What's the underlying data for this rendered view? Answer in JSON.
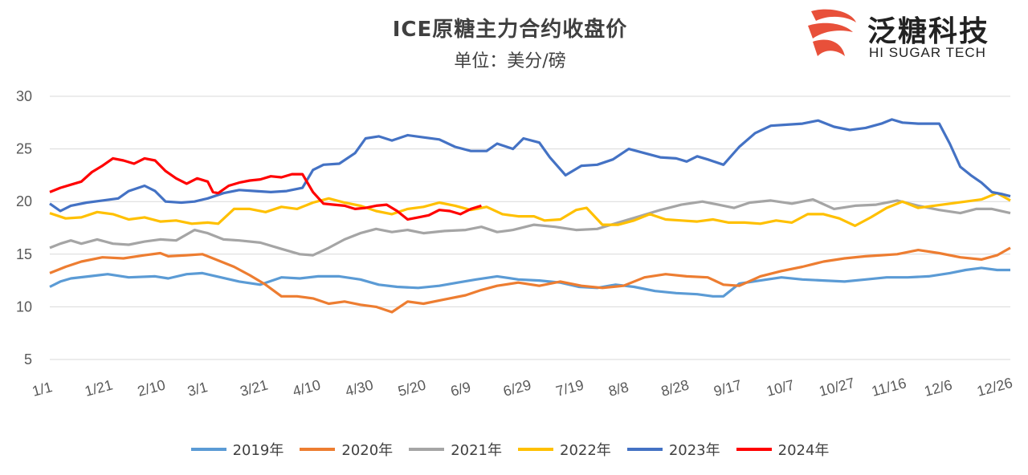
{
  "header": {
    "title": "ICE原糖主力合约收盘价",
    "subtitle": "单位：美分/磅"
  },
  "logo": {
    "name_cn": "泛糖科技",
    "name_en": "HI SUGAR TECH",
    "mark_icon": "hi-sugar-logo-icon"
  },
  "colors": {
    "2019": "#5B9BD5",
    "2020": "#ED7D31",
    "2021": "#A5A5A5",
    "2022": "#FFC000",
    "2023": "#4472C4",
    "2024": "#FF0000",
    "gridline": "#d9d9d9",
    "logo_red": "#E8503A"
  },
  "chart_data": {
    "type": "line",
    "title": "ICE原糖主力合约收盘价",
    "subtitle": "单位：美分/磅",
    "xlabel": "",
    "ylabel": "",
    "ylim": [
      5,
      30
    ],
    "yticks": [
      5,
      10,
      15,
      20,
      25,
      30
    ],
    "grid": true,
    "legend_position": "bottom",
    "x_domain_days": [
      0,
      365
    ],
    "x_ticks": [
      {
        "label": "1/1",
        "day": 0
      },
      {
        "label": "1/21",
        "day": 20
      },
      {
        "label": "2/10",
        "day": 40
      },
      {
        "label": "3/1",
        "day": 59
      },
      {
        "label": "3/21",
        "day": 79
      },
      {
        "label": "4/10",
        "day": 99
      },
      {
        "label": "4/30",
        "day": 119
      },
      {
        "label": "5/20",
        "day": 139
      },
      {
        "label": "6/9",
        "day": 159
      },
      {
        "label": "6/29",
        "day": 179
      },
      {
        "label": "7/19",
        "day": 199
      },
      {
        "label": "8/8",
        "day": 219
      },
      {
        "label": "8/28",
        "day": 239
      },
      {
        "label": "9/17",
        "day": 259
      },
      {
        "label": "10/7",
        "day": 279
      },
      {
        "label": "10/27",
        "day": 299
      },
      {
        "label": "11/16",
        "day": 319
      },
      {
        "label": "12/6",
        "day": 339
      },
      {
        "label": "12/26",
        "day": 359
      }
    ],
    "series": [
      {
        "name": "2019年",
        "x": [
          0,
          4,
          8,
          15,
          22,
          30,
          40,
          45,
          52,
          58,
          65,
          72,
          80,
          88,
          95,
          102,
          110,
          118,
          125,
          132,
          140,
          148,
          155,
          162,
          170,
          178,
          186,
          194,
          201,
          208,
          215,
          222,
          230,
          238,
          246,
          252,
          256,
          262,
          270,
          278,
          286,
          294,
          302,
          310,
          318,
          326,
          334,
          342,
          348,
          354,
          360,
          365
        ],
        "values": [
          11.9,
          12.4,
          12.7,
          12.9,
          13.1,
          12.8,
          12.9,
          12.7,
          13.1,
          13.2,
          12.8,
          12.4,
          12.1,
          12.8,
          12.7,
          12.9,
          12.9,
          12.6,
          12.1,
          11.9,
          11.8,
          12.0,
          12.3,
          12.6,
          12.9,
          12.6,
          12.5,
          12.3,
          11.9,
          11.8,
          12.1,
          11.9,
          11.5,
          11.3,
          11.2,
          11.0,
          11.0,
          12.2,
          12.5,
          12.8,
          12.6,
          12.5,
          12.4,
          12.6,
          12.8,
          12.8,
          12.9,
          13.2,
          13.5,
          13.7,
          13.5,
          13.5
        ]
      },
      {
        "name": "2020年",
        "x": [
          0,
          6,
          12,
          20,
          28,
          36,
          42,
          45,
          52,
          58,
          62,
          70,
          76,
          82,
          88,
          94,
          100,
          106,
          112,
          118,
          124,
          130,
          136,
          142,
          150,
          158,
          164,
          170,
          178,
          186,
          194,
          202,
          210,
          218,
          226,
          234,
          242,
          250,
          256,
          262,
          270,
          278,
          286,
          294,
          302,
          310,
          316,
          322,
          330,
          338,
          346,
          354,
          360,
          365
        ],
        "values": [
          13.2,
          13.8,
          14.3,
          14.7,
          14.6,
          14.9,
          15.1,
          14.8,
          14.9,
          15.0,
          14.6,
          13.8,
          13.0,
          12.1,
          11.0,
          11.0,
          10.8,
          10.3,
          10.5,
          10.2,
          10.0,
          9.5,
          10.5,
          10.3,
          10.7,
          11.1,
          11.6,
          12.0,
          12.3,
          12.0,
          12.4,
          12.0,
          11.8,
          12.0,
          12.8,
          13.1,
          12.9,
          12.8,
          12.1,
          12.0,
          12.9,
          13.4,
          13.8,
          14.3,
          14.6,
          14.8,
          14.9,
          15.0,
          15.4,
          15.1,
          14.7,
          14.5,
          14.9,
          15.6
        ]
      },
      {
        "name": "2021年",
        "x": [
          0,
          4,
          8,
          12,
          18,
          24,
          30,
          36,
          42,
          48,
          55,
          60,
          66,
          72,
          80,
          88,
          95,
          100,
          106,
          112,
          118,
          124,
          130,
          136,
          142,
          150,
          158,
          164,
          170,
          176,
          184,
          192,
          200,
          208,
          216,
          224,
          232,
          240,
          248,
          254,
          260,
          266,
          274,
          282,
          290,
          298,
          306,
          314,
          322,
          330,
          338,
          346,
          352,
          358,
          365
        ],
        "values": [
          15.6,
          16.0,
          16.3,
          16.0,
          16.4,
          16.0,
          15.9,
          16.2,
          16.4,
          16.3,
          17.3,
          17.0,
          16.4,
          16.3,
          16.1,
          15.5,
          15.0,
          14.9,
          15.6,
          16.4,
          17.0,
          17.4,
          17.1,
          17.3,
          17.0,
          17.2,
          17.3,
          17.6,
          17.1,
          17.3,
          17.8,
          17.6,
          17.3,
          17.4,
          18.0,
          18.6,
          19.2,
          19.7,
          20.0,
          19.7,
          19.4,
          19.9,
          20.1,
          19.8,
          20.2,
          19.3,
          19.6,
          19.7,
          20.1,
          19.6,
          19.2,
          18.9,
          19.3,
          19.3,
          18.9
        ]
      },
      {
        "name": "2022年",
        "x": [
          0,
          6,
          12,
          18,
          24,
          30,
          36,
          42,
          48,
          54,
          60,
          64,
          70,
          76,
          82,
          88,
          94,
          100,
          106,
          112,
          118,
          124,
          130,
          136,
          142,
          148,
          154,
          160,
          166,
          172,
          178,
          184,
          188,
          194,
          200,
          204,
          210,
          216,
          222,
          228,
          234,
          240,
          246,
          252,
          258,
          264,
          270,
          276,
          282,
          288,
          294,
          300,
          306,
          312,
          318,
          324,
          330,
          336,
          342,
          348,
          354,
          360,
          365
        ],
        "values": [
          18.9,
          18.4,
          18.5,
          19.0,
          18.8,
          18.3,
          18.5,
          18.1,
          18.2,
          17.9,
          18.0,
          17.9,
          19.3,
          19.3,
          19.0,
          19.5,
          19.3,
          19.9,
          20.3,
          19.9,
          19.6,
          19.1,
          18.8,
          19.3,
          19.5,
          19.9,
          19.6,
          19.2,
          19.5,
          18.8,
          18.6,
          18.6,
          18.2,
          18.3,
          19.2,
          19.4,
          17.8,
          17.8,
          18.2,
          18.8,
          18.3,
          18.2,
          18.1,
          18.3,
          18.0,
          18.0,
          17.9,
          18.2,
          18.0,
          18.8,
          18.8,
          18.4,
          17.7,
          18.5,
          19.4,
          20.0,
          19.4,
          19.6,
          19.8,
          20.0,
          20.2,
          20.8,
          20.1
        ]
      },
      {
        "name": "2023年",
        "x": [
          0,
          4,
          8,
          14,
          20,
          26,
          30,
          36,
          40,
          44,
          50,
          55,
          60,
          66,
          72,
          78,
          84,
          90,
          96,
          100,
          104,
          110,
          116,
          120,
          125,
          130,
          136,
          142,
          148,
          154,
          160,
          166,
          170,
          176,
          180,
          186,
          190,
          196,
          202,
          208,
          214,
          220,
          226,
          232,
          238,
          242,
          246,
          250,
          256,
          262,
          268,
          274,
          280,
          286,
          292,
          298,
          304,
          310,
          316,
          320,
          324,
          330,
          334,
          338,
          342,
          346,
          350,
          354,
          358,
          362,
          365
        ],
        "values": [
          19.8,
          19.1,
          19.6,
          19.9,
          20.1,
          20.3,
          21.0,
          21.5,
          21.0,
          20.0,
          19.9,
          20.0,
          20.3,
          20.8,
          21.1,
          21.0,
          20.9,
          21.0,
          21.3,
          23.0,
          23.5,
          23.6,
          24.6,
          26.0,
          26.2,
          25.8,
          26.3,
          26.1,
          25.9,
          25.2,
          24.8,
          24.8,
          25.5,
          25.0,
          26.0,
          25.6,
          24.2,
          22.5,
          23.4,
          23.5,
          24.0,
          25.0,
          24.6,
          24.2,
          24.1,
          23.8,
          24.3,
          24.0,
          23.5,
          25.2,
          26.5,
          27.2,
          27.3,
          27.4,
          27.7,
          27.1,
          26.8,
          27.0,
          27.4,
          27.8,
          27.5,
          27.4,
          27.4,
          27.4,
          25.5,
          23.3,
          22.5,
          21.8,
          20.9,
          20.7,
          20.5
        ]
      },
      {
        "name": "2024年",
        "x": [
          0,
          4,
          8,
          12,
          16,
          20,
          24,
          28,
          32,
          36,
          40,
          44,
          48,
          52,
          56,
          60,
          62,
          64,
          68,
          72,
          76,
          80,
          84,
          88,
          92,
          96,
          100,
          104,
          108,
          112,
          116,
          120,
          124,
          128,
          132,
          136,
          140,
          144,
          148,
          152,
          156,
          160,
          164
        ],
        "values": [
          20.9,
          21.3,
          21.6,
          21.9,
          22.8,
          23.4,
          24.1,
          23.9,
          23.6,
          24.1,
          23.9,
          22.9,
          22.2,
          21.7,
          22.2,
          21.9,
          20.9,
          20.8,
          21.5,
          21.8,
          22.0,
          22.1,
          22.4,
          22.3,
          22.6,
          22.6,
          20.9,
          19.8,
          19.7,
          19.6,
          19.3,
          19.4,
          19.6,
          19.7,
          19.1,
          18.3,
          18.5,
          18.7,
          19.2,
          19.1,
          18.8,
          19.3,
          19.6
        ]
      }
    ]
  }
}
